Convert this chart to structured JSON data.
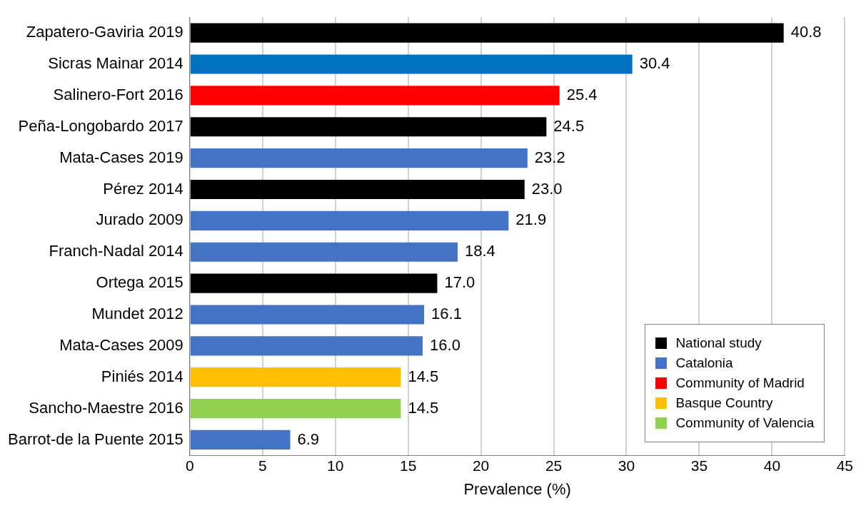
{
  "chart_data": {
    "type": "bar",
    "orientation": "horizontal",
    "xlabel": "Prevalence (%)",
    "categories": [
      "Zapatero-Gaviria 2019",
      "Sicras Mainar 2014",
      "Salinero-Fort 2016",
      "Peña-Longobardo 2017",
      "Mata-Cases 2019",
      "Pérez 2014",
      "Jurado 2009",
      "Franch-Nadal 2014",
      "Ortega 2015",
      "Mundet 2012",
      "Mata-Cases 2009",
      "Piniés 2014",
      "Sancho-Maestre 2016",
      "Barrot-de la Puente 2015"
    ],
    "series": [
      {
        "name": "National study",
        "color": "#000000",
        "values": [
          40.8,
          null,
          null,
          24.5,
          null,
          23.0,
          null,
          null,
          17.0,
          null,
          null,
          null,
          null,
          null
        ],
        "value_labels": [
          "40.8",
          null,
          null,
          "24.5",
          null,
          "23.0",
          null,
          null,
          "17.0",
          null,
          null,
          null,
          null,
          null
        ]
      },
      {
        "name": "Catalonia",
        "color": "#4472c4",
        "values": [
          null,
          null,
          null,
          null,
          23.2,
          null,
          21.9,
          18.4,
          null,
          16.1,
          16.0,
          null,
          null,
          6.9
        ],
        "value_labels": [
          null,
          null,
          null,
          null,
          "23.2",
          null,
          "21.9",
          "18.4",
          null,
          "16.1",
          "16.0",
          null,
          null,
          "6.9"
        ]
      },
      {
        "name": "Community of Madrid",
        "color": "#ff0000",
        "values": [
          null,
          null,
          25.4,
          null,
          null,
          null,
          null,
          null,
          null,
          null,
          null,
          null,
          null,
          null
        ],
        "value_labels": [
          null,
          null,
          "25.4",
          null,
          null,
          null,
          null,
          null,
          null,
          null,
          null,
          null,
          null,
          null
        ]
      },
      {
        "name": "Basque Country",
        "color": "#ffc000",
        "values": [
          null,
          null,
          null,
          null,
          null,
          null,
          null,
          null,
          null,
          null,
          null,
          14.5,
          null,
          null
        ],
        "value_labels": [
          null,
          null,
          null,
          null,
          null,
          null,
          null,
          null,
          null,
          null,
          null,
          "14.5",
          null,
          null
        ]
      },
      {
        "name": "Community of Valencia",
        "color": "#92d050",
        "values": [
          null,
          null,
          null,
          null,
          null,
          null,
          null,
          null,
          null,
          null,
          null,
          null,
          14.5,
          null
        ],
        "value_labels": [
          null,
          null,
          null,
          null,
          null,
          null,
          null,
          null,
          null,
          null,
          null,
          null,
          "14.5",
          null
        ]
      },
      {
        "color": "#0070c0",
        "values": [
          null,
          30.4,
          null,
          null,
          null,
          null,
          null,
          null,
          null,
          null,
          null,
          null,
          null,
          null
        ],
        "value_labels": [
          null,
          "30.4",
          null,
          null,
          null,
          null,
          null,
          null,
          null,
          null,
          null,
          null,
          null,
          null
        ]
      }
    ],
    "xlim": [
      0,
      45
    ],
    "xticks": [
      0,
      5,
      10,
      15,
      20,
      25,
      30,
      35,
      40,
      45
    ],
    "grid": "x",
    "legend": "bottom right"
  }
}
